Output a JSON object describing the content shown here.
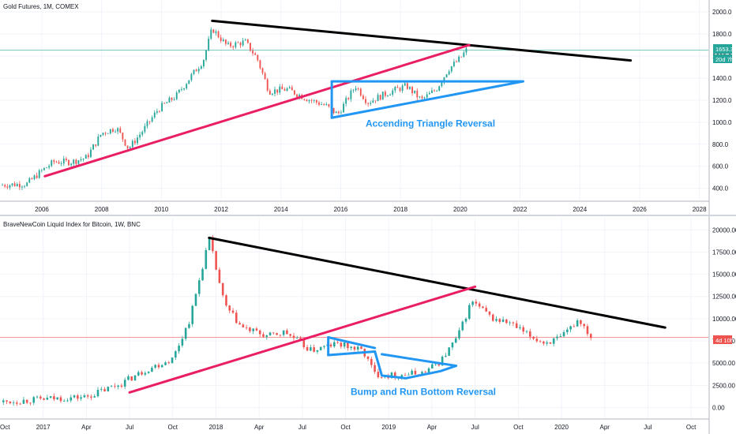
{
  "colors": {
    "up": "#26a69a",
    "down": "#ef5350",
    "resistance": "#000000",
    "support": "#e91e63",
    "pattern": "#2196f3",
    "grid": "#f0f3fa",
    "axis": "#b2b5be",
    "text": "#131722"
  },
  "chart_data": [
    {
      "type": "candlestick",
      "title": "Gold Futures, 1M, COMEX",
      "x_ticks": [
        "2006",
        "2008",
        "2010",
        "2012",
        "2014",
        "2016",
        "2018",
        "2020",
        "2022",
        "2024",
        "2026",
        "2028"
      ],
      "y_ticks": [
        "400.0",
        "600.0",
        "800.0",
        "1000.0",
        "1200.0",
        "1400.0",
        "1600.0",
        "1800.0",
        "2000.0"
      ],
      "xlim": [
        2004.6,
        2028.3
      ],
      "ylim": [
        290,
        2080
      ],
      "series": [
        {
          "x": 2004.6,
          "y": 430
        },
        {
          "x": 2005.5,
          "y": 440
        },
        {
          "x": 2006.0,
          "y": 560
        },
        {
          "x": 2006.4,
          "y": 640
        },
        {
          "x": 2007.0,
          "y": 640
        },
        {
          "x": 2007.5,
          "y": 680
        },
        {
          "x": 2008.0,
          "y": 900
        },
        {
          "x": 2008.5,
          "y": 950
        },
        {
          "x": 2008.9,
          "y": 760
        },
        {
          "x": 2009.4,
          "y": 930
        },
        {
          "x": 2009.9,
          "y": 1120
        },
        {
          "x": 2010.5,
          "y": 1240
        },
        {
          "x": 2011.0,
          "y": 1420
        },
        {
          "x": 2011.4,
          "y": 1560
        },
        {
          "x": 2011.7,
          "y": 1850
        },
        {
          "x": 2012.2,
          "y": 1690
        },
        {
          "x": 2012.8,
          "y": 1730
        },
        {
          "x": 2013.2,
          "y": 1580
        },
        {
          "x": 2013.6,
          "y": 1280
        },
        {
          "x": 2014.2,
          "y": 1300
        },
        {
          "x": 2014.9,
          "y": 1210
        },
        {
          "x": 2015.5,
          "y": 1150
        },
        {
          "x": 2015.9,
          "y": 1070
        },
        {
          "x": 2016.5,
          "y": 1330
        },
        {
          "x": 2016.9,
          "y": 1180
        },
        {
          "x": 2017.6,
          "y": 1270
        },
        {
          "x": 2018.2,
          "y": 1330
        },
        {
          "x": 2018.7,
          "y": 1200
        },
        {
          "x": 2019.2,
          "y": 1300
        },
        {
          "x": 2019.6,
          "y": 1480
        },
        {
          "x": 2020.0,
          "y": 1580
        },
        {
          "x": 2020.2,
          "y": 1653
        }
      ],
      "drawings": [
        {
          "name": "resistance-line",
          "color": "resistance",
          "points": [
            [
              2011.7,
              1920
            ],
            [
              2025.7,
              1560
            ]
          ]
        },
        {
          "name": "support-line",
          "color": "support",
          "points": [
            [
              2006.1,
              510
            ],
            [
              2020.3,
              1700
            ]
          ]
        },
        {
          "name": "triangle-top",
          "color": "pattern",
          "points": [
            [
              2015.7,
              1370
            ],
            [
              2022.1,
              1370
            ]
          ]
        },
        {
          "name": "triangle-bottom",
          "color": "pattern",
          "points": [
            [
              2015.7,
              1040
            ],
            [
              2022.1,
              1370
            ]
          ]
        },
        {
          "name": "triangle-left",
          "color": "pattern",
          "points": [
            [
              2015.7,
              1040
            ],
            [
              2015.7,
              1370
            ]
          ]
        }
      ],
      "hline": {
        "value": 1653.3,
        "color": "#26a69a"
      },
      "price_badge": {
        "price": "1653.3",
        "countdown": "20d 7h"
      },
      "annotation": {
        "text": "Accending Triangle Reversal",
        "x": 2019.0,
        "y": 960
      }
    },
    {
      "type": "candlestick",
      "title": "BraveNewCoin Liquid Index for Bitcoin, 1W, BNC",
      "x_ticks": [
        "Oct",
        "2017",
        "Apr",
        "Jul",
        "Oct",
        "2018",
        "Apr",
        "Jul",
        "Oct",
        "2019",
        "Apr",
        "Jul",
        "Oct",
        "2020",
        "Apr",
        "Jul",
        "Oct"
      ],
      "y_ticks": [
        "0.00",
        "2500.00",
        "5000.00",
        "7500.00",
        "10000.00",
        "12500.00",
        "15000.00",
        "17500.00",
        "20000.00"
      ],
      "xlim": [
        2016.75,
        2020.85
      ],
      "ylim": [
        -1200,
        21000
      ],
      "series": [
        {
          "x": 2016.75,
          "y": 600
        },
        {
          "x": 2017.0,
          "y": 950
        },
        {
          "x": 2017.25,
          "y": 1200
        },
        {
          "x": 2017.45,
          "y": 2700
        },
        {
          "x": 2017.6,
          "y": 4300
        },
        {
          "x": 2017.75,
          "y": 5500
        },
        {
          "x": 2017.85,
          "y": 10000
        },
        {
          "x": 2017.96,
          "y": 19000
        },
        {
          "x": 2018.05,
          "y": 11500
        },
        {
          "x": 2018.15,
          "y": 9000
        },
        {
          "x": 2018.3,
          "y": 8000
        },
        {
          "x": 2018.4,
          "y": 8500
        },
        {
          "x": 2018.55,
          "y": 6400
        },
        {
          "x": 2018.7,
          "y": 7200
        },
        {
          "x": 2018.85,
          "y": 6400
        },
        {
          "x": 2018.92,
          "y": 3800
        },
        {
          "x": 2019.0,
          "y": 3600
        },
        {
          "x": 2019.2,
          "y": 3900
        },
        {
          "x": 2019.3,
          "y": 5200
        },
        {
          "x": 2019.4,
          "y": 8000
        },
        {
          "x": 2019.48,
          "y": 12000
        },
        {
          "x": 2019.6,
          "y": 10000
        },
        {
          "x": 2019.7,
          "y": 9500
        },
        {
          "x": 2019.8,
          "y": 8200
        },
        {
          "x": 2019.9,
          "y": 7300
        },
        {
          "x": 2020.0,
          "y": 7800
        },
        {
          "x": 2020.1,
          "y": 10000
        },
        {
          "x": 2020.17,
          "y": 8000
        }
      ],
      "drawings": [
        {
          "name": "resistance-line",
          "color": "resistance",
          "points": [
            [
              2017.96,
              19100
            ],
            [
              2020.6,
              9000
            ]
          ]
        },
        {
          "name": "support-line",
          "color": "support",
          "points": [
            [
              2017.5,
              1700
            ],
            [
              2019.5,
              13600
            ]
          ]
        },
        {
          "name": "bump-left-edge",
          "color": "pattern",
          "points": [
            [
              2018.65,
              5900
            ],
            [
              2018.65,
              7900
            ]
          ]
        },
        {
          "name": "bump-top",
          "color": "pattern",
          "points": [
            [
              2018.65,
              7900
            ],
            [
              2018.92,
              6700
            ]
          ]
        },
        {
          "name": "bump-lower",
          "color": "pattern",
          "points": [
            [
              2018.65,
              5900
            ],
            [
              2018.92,
              6300
            ]
          ]
        },
        {
          "name": "run-bottom",
          "color": "pattern",
          "points": [
            [
              2018.92,
              6300
            ],
            [
              2018.96,
              3600
            ],
            [
              2019.1,
              3300
            ],
            [
              2019.3,
              4100
            ],
            [
              2019.39,
              4700
            ]
          ]
        },
        {
          "name": "run-top",
          "color": "pattern",
          "points": [
            [
              2018.96,
              6000
            ],
            [
              2019.39,
              4700
            ]
          ]
        }
      ],
      "hline": {
        "value": 7900,
        "color": "#ef5350"
      },
      "price_badge": {
        "countdown": "4d 10h"
      },
      "annotation": {
        "text": "Bump and Run Bottom Reversal",
        "x": 2019.2,
        "y": 1400
      }
    }
  ]
}
